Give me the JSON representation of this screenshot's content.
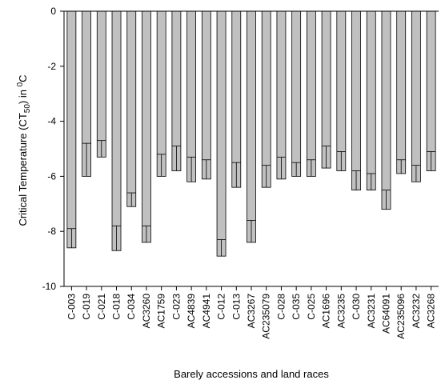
{
  "chart_data": {
    "type": "bar",
    "title": "",
    "ylabel": {
      "pre": "Critical Temperature (CT",
      "sub": "50",
      "mid": ") in ",
      "sup": "0",
      "post": "C"
    },
    "xlabel": "Barely accessions and land races",
    "ylim": [
      -10,
      0
    ],
    "yticks": [
      0,
      -2,
      -4,
      -6,
      -8,
      -10
    ],
    "grid": false,
    "legend": "none",
    "bar_color": "#c0c0c0",
    "categories": [
      "C-003",
      "C-019",
      "C-021",
      "C-018",
      "C-034",
      "AC3260",
      "AC1759",
      "C-023",
      "AC4839",
      "AC4941",
      "C-012",
      "C-013",
      "AC3267",
      "AC235079",
      "C-028",
      "C-035",
      "C-025",
      "AC1696",
      "AC3235",
      "C-030",
      "AC3231",
      "AC64091",
      "AC235096",
      "AC3232",
      "AC3268"
    ],
    "values": [
      -8.6,
      -6.0,
      -5.3,
      -8.7,
      -7.1,
      -8.4,
      -6.0,
      -5.8,
      -6.2,
      -6.1,
      -8.9,
      -6.4,
      -8.4,
      -6.4,
      -6.1,
      -6.0,
      -6.0,
      -5.7,
      -5.8,
      -6.5,
      -6.5,
      -7.2,
      -5.9,
      -6.2,
      -5.8
    ],
    "errors": [
      0.7,
      1.2,
      0.6,
      0.9,
      0.5,
      0.6,
      0.8,
      0.9,
      0.9,
      0.7,
      0.6,
      0.9,
      0.8,
      0.8,
      0.8,
      0.5,
      0.6,
      0.8,
      0.7,
      0.7,
      0.6,
      0.7,
      0.5,
      0.6,
      0.7
    ]
  }
}
